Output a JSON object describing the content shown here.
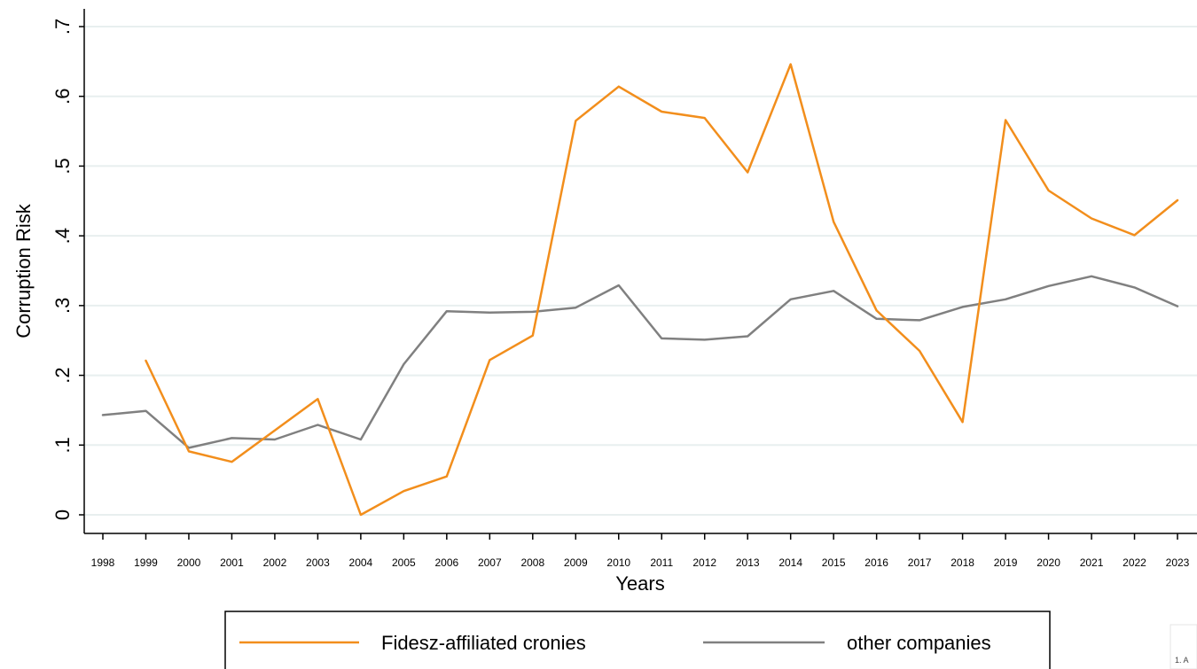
{
  "chart_data": {
    "type": "line",
    "title": "",
    "xlabel": "Years",
    "ylabel": "Corruption Risk",
    "ylim": [
      0,
      0.7
    ],
    "yticks": [
      0,
      0.1,
      0.2,
      0.3,
      0.4,
      0.5,
      0.6,
      0.7
    ],
    "ytick_labels": [
      "0",
      ".1",
      ".2",
      ".3",
      ".4",
      ".5",
      ".6",
      ".7"
    ],
    "grid": true,
    "legend_position": "bottom",
    "x": [
      1998,
      1999,
      2000,
      2001,
      2002,
      2003,
      2004,
      2005,
      2006,
      2007,
      2008,
      2009,
      2010,
      2011,
      2012,
      2013,
      2014,
      2015,
      2016,
      2017,
      2018,
      2019,
      2020,
      2021,
      2022,
      2023
    ],
    "series": [
      {
        "name": "Fidesz-affiliated cronies",
        "color": "#f28e1c",
        "values": [
          null,
          0.221,
          0.091,
          0.076,
          0.121,
          0.166,
          0.0,
          0.034,
          0.055,
          0.222,
          0.257,
          0.565,
          0.614,
          0.578,
          0.569,
          0.491,
          0.646,
          0.42,
          0.293,
          0.235,
          0.133,
          0.566,
          0.465,
          0.425,
          0.401,
          0.451
        ]
      },
      {
        "name": "other companies",
        "color": "#808080",
        "values": [
          0.143,
          0.149,
          0.096,
          0.11,
          0.108,
          0.129,
          0.108,
          0.216,
          0.292,
          0.29,
          0.291,
          0.297,
          0.329,
          0.253,
          0.251,
          0.256,
          0.309,
          0.321,
          0.281,
          0.279,
          0.298,
          0.309,
          0.328,
          0.342,
          0.326,
          0.299
        ]
      }
    ]
  },
  "corner_note": "1. A"
}
